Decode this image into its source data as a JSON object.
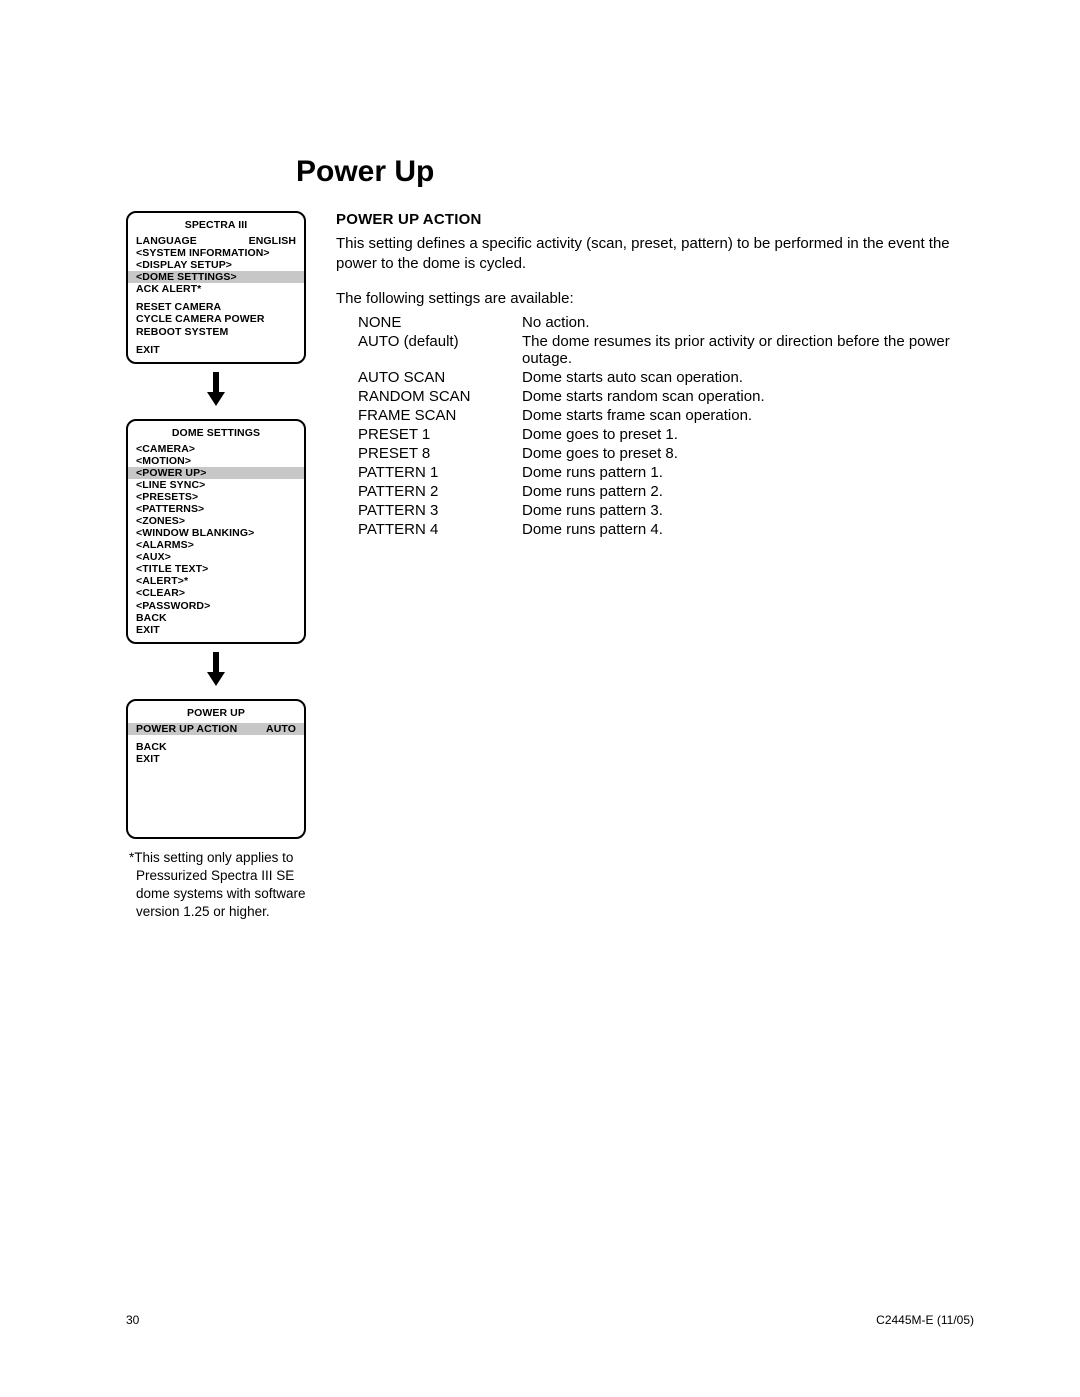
{
  "page": {
    "title": "Power Up",
    "page_number": "30",
    "doc_code": "C2445M-E (11/05)"
  },
  "content": {
    "section_head": "POWER UP ACTION",
    "intro": "This setting defines a specific activity (scan, preset, pattern) to be performed in the event the power to the dome is cycled.",
    "available_lead": "The following settings are available:",
    "settings": [
      {
        "name": "NONE",
        "desc": "No action."
      },
      {
        "name": "AUTO (default)",
        "desc": "The dome resumes its prior activity or direction before the power outage."
      },
      {
        "name": "AUTO SCAN",
        "desc": "Dome starts auto scan operation."
      },
      {
        "name": "RANDOM SCAN",
        "desc": "Dome starts random scan operation."
      },
      {
        "name": "FRAME SCAN",
        "desc": "Dome starts frame scan operation."
      },
      {
        "name": "PRESET 1",
        "desc": "Dome goes to preset 1."
      },
      {
        "name": "PRESET 8",
        "desc": "Dome goes to preset 8."
      },
      {
        "name": "PATTERN 1",
        "desc": "Dome runs pattern 1."
      },
      {
        "name": "PATTERN 2",
        "desc": "Dome runs pattern 2."
      },
      {
        "name": "PATTERN 3",
        "desc": "Dome runs pattern 3."
      },
      {
        "name": "PATTERN 4",
        "desc": "Dome runs pattern 4."
      }
    ]
  },
  "menus": {
    "m1": {
      "title": "SPECTRA III",
      "lang_label": "LANGUAGE",
      "lang_value": "ENGLISH",
      "items": [
        "<SYSTEM INFORMATION>",
        "<DISPLAY SETUP>"
      ],
      "highlight": "<DOME SETTINGS>",
      "after_hl": [
        "ACK ALERT*"
      ],
      "group2": [
        "RESET CAMERA",
        "CYCLE CAMERA POWER",
        "REBOOT SYSTEM"
      ],
      "exit": "EXIT"
    },
    "m2": {
      "title": "DOME SETTINGS",
      "before_hl": [
        "<CAMERA>",
        "<MOTION>"
      ],
      "highlight": "<POWER UP>",
      "after_hl": [
        "<LINE SYNC>",
        "<PRESETS>",
        "<PATTERNS>",
        "<ZONES>",
        "<WINDOW BLANKING>",
        "<ALARMS>",
        "<AUX>",
        "<TITLE TEXT>",
        "<ALERT>*",
        "<CLEAR>",
        "<PASSWORD>",
        "BACK",
        "EXIT"
      ]
    },
    "m3": {
      "title": "POWER UP",
      "row_label": "POWER UP ACTION",
      "row_value": "AUTO",
      "items": [
        "BACK",
        "EXIT"
      ]
    }
  },
  "footnote": "*This setting only applies to Pressurized Spectra III SE dome systems with software version 1.25 or higher."
}
